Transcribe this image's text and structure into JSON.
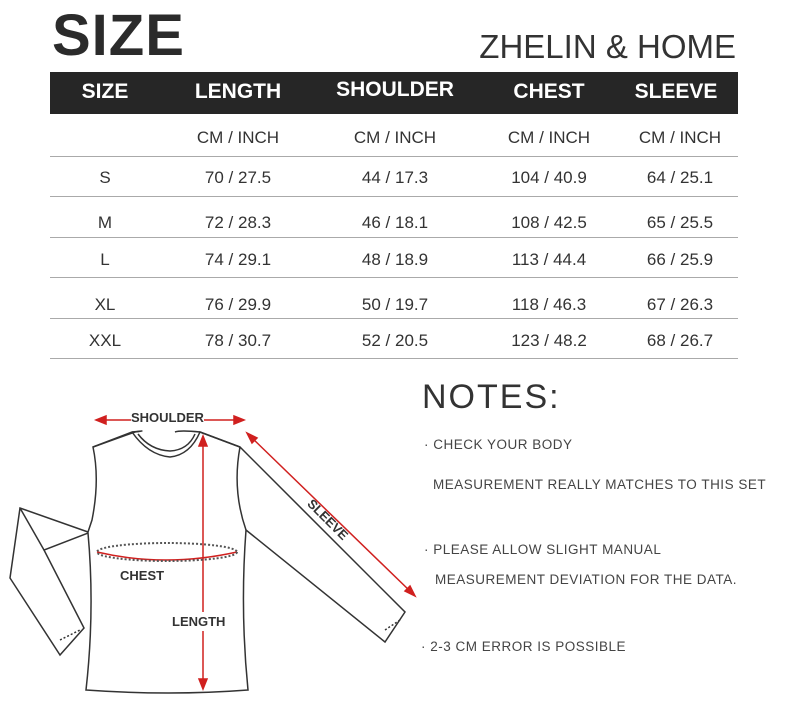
{
  "title": "SIZE",
  "brand": "ZHELIN & HOME",
  "table": {
    "headers": [
      "SIZE",
      "LENGTH",
      "SHOULDER",
      "CHEST",
      "SLEEVE"
    ],
    "units": [
      "",
      "CM / INCH",
      "CM / INCH",
      "CM / INCH",
      "CM / INCH"
    ],
    "rows": [
      [
        "S",
        "70 / 27.5",
        "44 / 17.3",
        "104 / 40.9",
        "64 / 25.1"
      ],
      [
        "M",
        "72 / 28.3",
        "46 / 18.1",
        "108 / 42.5",
        "65 / 25.5"
      ],
      [
        "L",
        "74 / 29.1",
        "48 / 18.9",
        "113 / 44.4",
        "66 / 25.9"
      ],
      [
        "XL",
        "76 / 29.9",
        "50 / 19.7",
        "118 / 46.3",
        "67 / 26.3"
      ],
      [
        "XXL",
        "78 / 30.7",
        "52 / 20.5",
        "123 / 48.2",
        "68 / 26.7"
      ]
    ]
  },
  "diagram": {
    "shoulder": "SHOULDER",
    "chest": "CHEST",
    "length": "LENGTH",
    "sleeve": "SLEEVE",
    "arrow_color": "#d0201f"
  },
  "notes": {
    "title": "NOTES:",
    "lines": [
      "· CHECK YOUR BODY",
      "MEASUREMENT REALLY MATCHES TO THIS SET",
      "· PLEASE ALLOW SLIGHT MANUAL",
      "MEASUREMENT DEVIATION FOR THE DATA.",
      "· 2-3 CM ERROR IS POSSIBLE"
    ]
  }
}
